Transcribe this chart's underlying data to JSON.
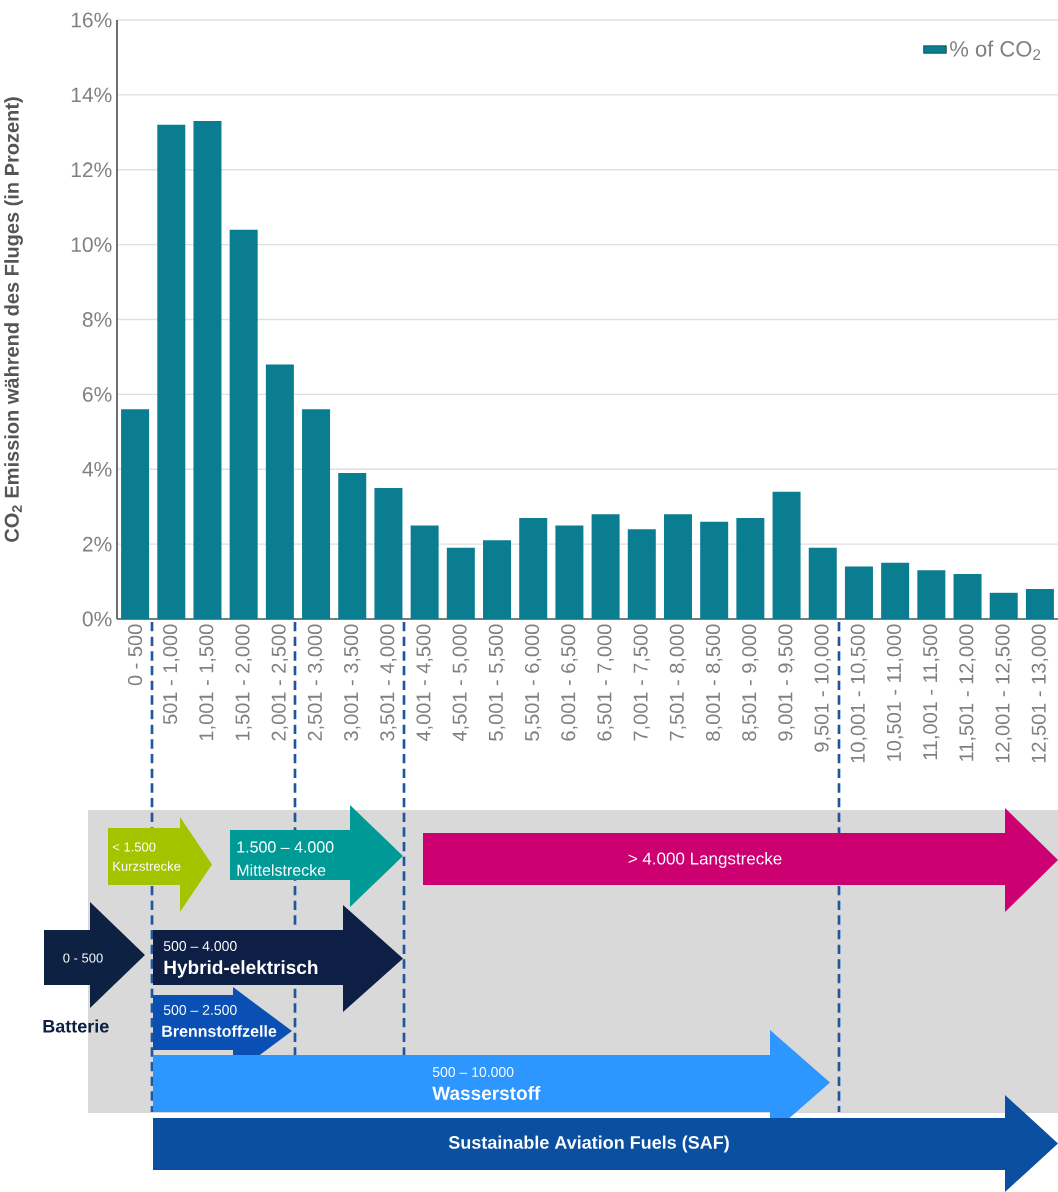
{
  "chart_data": {
    "type": "bar",
    "ylabel": "CO$_{2}$ Emission während des Fluges (in Prozent)",
    "categories": [
      "0 - 500",
      "501 - 1,000",
      "1,001 - 1,500",
      "1,501 - 2,000",
      "2,001 - 2,500",
      "2,501 - 3,000",
      "3,001 - 3,500",
      "3,501 - 4,000",
      "4,001 - 4,500",
      "4,501 - 5,000",
      "5,001 - 5,500",
      "5,501 - 6,000",
      "6,001 - 6,500",
      "6,501 - 7,000",
      "7,001 - 7,500",
      "7,501 - 8,000",
      "8,001 - 8,500",
      "8,501 - 9,000",
      "9,001 - 9,500",
      "9,501 - 10,000",
      "10,001 - 10,500",
      "10,501 - 11,000",
      "11,001 - 11,500",
      "11,501 - 12,000",
      "12,001 - 12,500",
      "12,501 - 13,000"
    ],
    "series": [
      {
        "name": "% of CO$_{2}$",
        "color": "#0b7d90",
        "values": [
          5.6,
          13.2,
          13.3,
          10.4,
          6.8,
          5.6,
          3.9,
          3.5,
          2.5,
          1.9,
          2.1,
          2.7,
          2.5,
          2.8,
          2.4,
          2.8,
          2.6,
          2.7,
          3.4,
          1.9,
          1.4,
          1.5,
          1.3,
          1.2,
          0.7,
          0.8
        ]
      }
    ],
    "ylim": [
      0,
      16
    ],
    "yticks": [
      {
        "value": 0,
        "label": "0%"
      },
      {
        "value": 2,
        "label": "2%"
      },
      {
        "value": 4,
        "label": "4%"
      },
      {
        "value": 6,
        "label": "6%"
      },
      {
        "value": 8,
        "label": "8%"
      },
      {
        "value": 10,
        "label": "10%"
      },
      {
        "value": 12,
        "label": "12%"
      },
      {
        "value": 14,
        "label": "14%"
      },
      {
        "value": 16,
        "label": "16%"
      }
    ],
    "grid": "y",
    "legend": "top right",
    "annotations": [
      "< 1.500",
      "Kurzstrecke",
      "1.500 – 4.000",
      "Mittelstrecke",
      "> 4.000 Langstrecke",
      "0 - 500",
      "Batterie",
      "500 – 4.000",
      "Hybrid-elektrisch",
      "500 – 2.500",
      "Brennstoffzelle",
      "500 – 10.000",
      "Wasserstoff",
      "Sustainable Aviation Fuels (SAF)"
    ]
  }
}
